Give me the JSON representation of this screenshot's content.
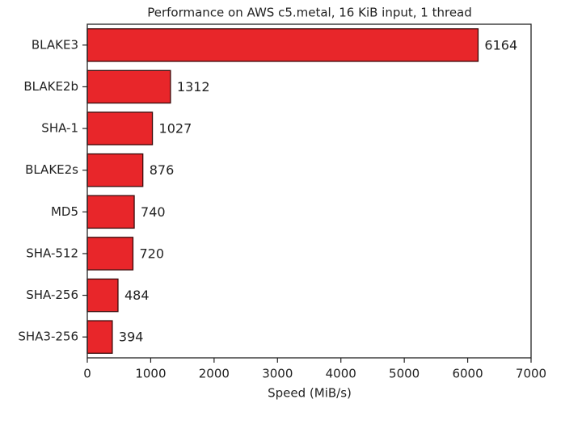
{
  "chart_data": {
    "type": "bar",
    "orientation": "horizontal",
    "title": "Performance on AWS c5.metal, 16 KiB input, 1 thread",
    "x_label": "Speed (MiB/s)",
    "categories": [
      "BLAKE3",
      "BLAKE2b",
      "SHA-1",
      "BLAKE2s",
      "MD5",
      "SHA-512",
      "SHA-256",
      "SHA3-256"
    ],
    "values": [
      6164,
      1312,
      1027,
      876,
      740,
      720,
      484,
      394
    ],
    "color": "#e8262a",
    "xlim": [
      0,
      7000
    ],
    "xticks": [
      0,
      1000,
      2000,
      3000,
      4000,
      5000,
      6000,
      7000
    ],
    "grid": false
  }
}
